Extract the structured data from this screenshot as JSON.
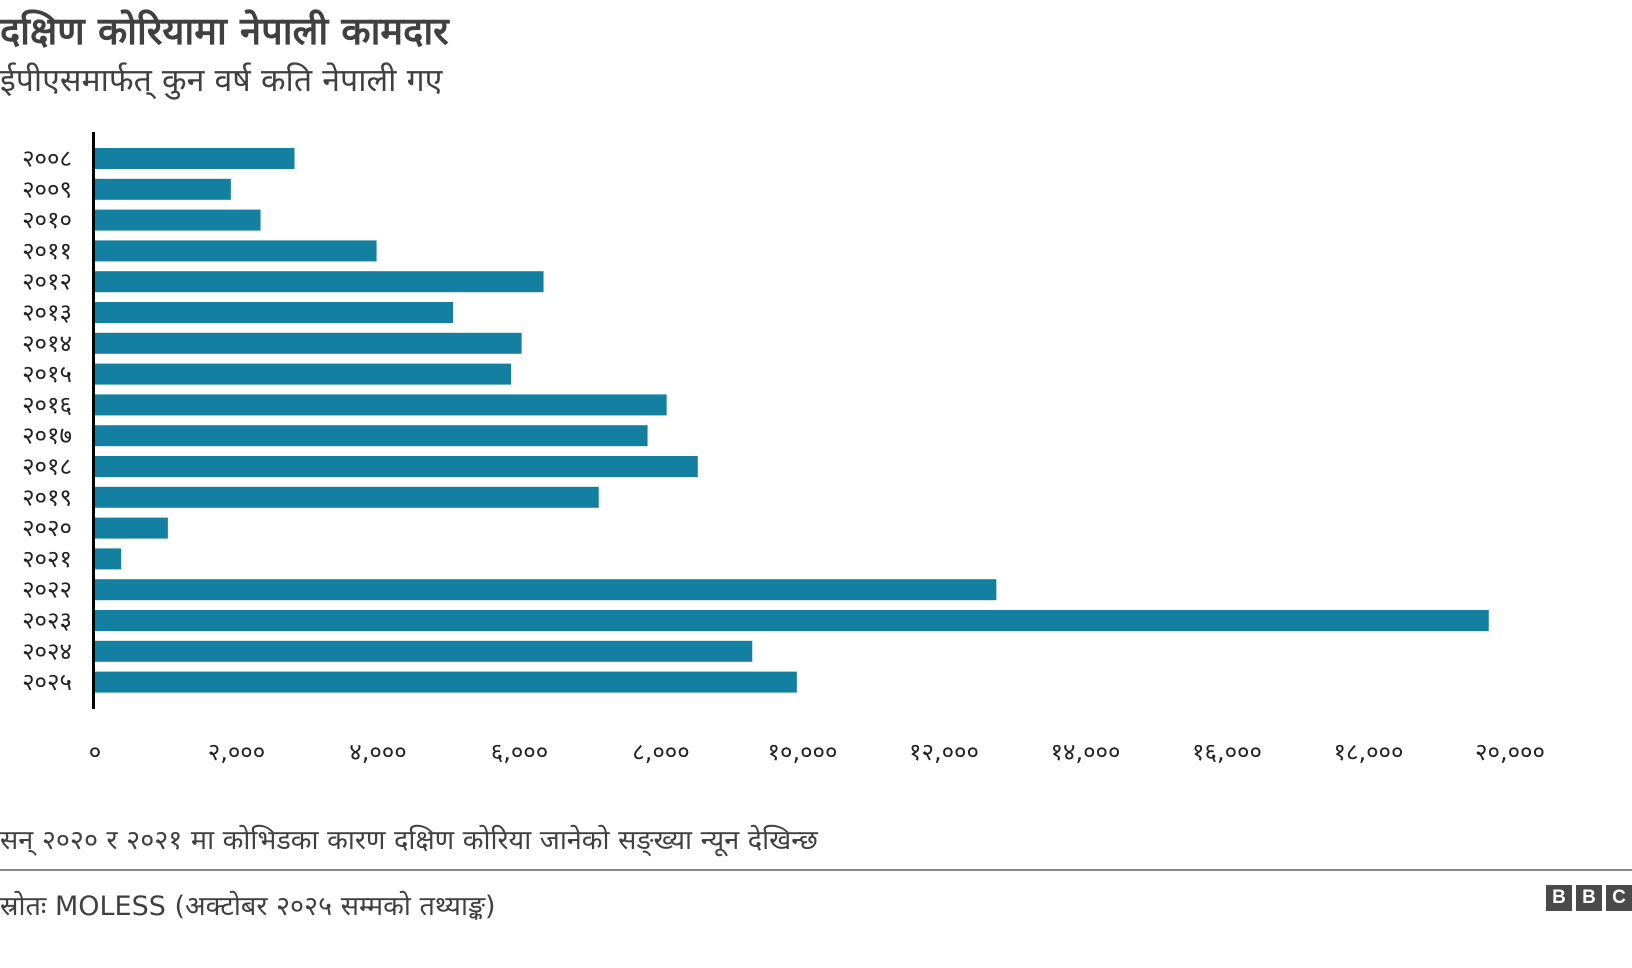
{
  "title": "दक्षिण कोरियामा नेपाली कामदार",
  "subtitle": "ईपीएसमार्फत् कुन वर्ष कति नेपाली गए",
  "note": "सन् २०२० र २०२१ मा कोभिडका कारण दक्षिण कोरिया जानेको सङ्ख्या न्यून देखिन्छ",
  "source": "स्रोतः MOLESS (अक्टोबर २०२५ सम्मको तथ्याङ्क)",
  "logo": [
    "B",
    "B",
    "C"
  ],
  "colors": {
    "bar": "#1380A1",
    "axis": "#000000"
  },
  "chart_data": {
    "type": "bar",
    "orientation": "horizontal",
    "title": "दक्षिण कोरियामा नेपाली कामदार",
    "subtitle": "ईपीएसमार्फत् कुन वर्ष कति नेपाली गए",
    "categories": [
      "२००८",
      "२००९",
      "२०१०",
      "२०११",
      "२०१२",
      "२०१३",
      "२०१४",
      "२०१५",
      "२०१६",
      "२०१७",
      "२०१८",
      "२०१९",
      "२०२०",
      "२०२१",
      "२०२२",
      "२०२३",
      "२०२४",
      "२०२५"
    ],
    "values": [
      2820,
      1920,
      2340,
      3980,
      6340,
      5060,
      6030,
      5880,
      8080,
      7810,
      8520,
      7120,
      1030,
      370,
      12740,
      19700,
      9290,
      9920
    ],
    "xlim": [
      0,
      20000
    ],
    "xticks": [
      0,
      2000,
      4000,
      6000,
      8000,
      10000,
      12000,
      14000,
      16000,
      18000,
      20000
    ],
    "xtick_labels": [
      "०",
      "२,०००",
      "४,०००",
      "६,०००",
      "८,०००",
      "१०,०००",
      "१२,०००",
      "१४,०००",
      "१६,०००",
      "१८,०००",
      "२०,०००"
    ],
    "grid": false,
    "xlabel": "",
    "ylabel": ""
  }
}
